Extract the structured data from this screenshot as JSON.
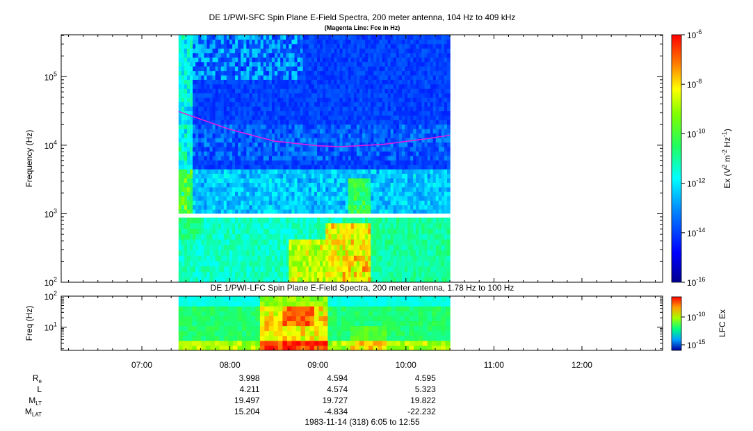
{
  "chart_data": [
    {
      "type": "heatmap",
      "title": "DE 1/PWI-SFC  Spin Plane E-Field Spectra, 200 meter antenna, 104 Hz to 409 kHz",
      "subtitle": "(Magenta Line: Fce in Hz)",
      "ylabel": "Frequency (Hz)",
      "yscale": "log",
      "ylim": [
        100,
        409000
      ],
      "ytick_labels": [
        "10^2",
        "10^3",
        "10^4",
        "10^5"
      ],
      "data_time_range": [
        "07:25",
        "10:30"
      ],
      "colorbar": {
        "label": "Ex (V^2 m^-2 Hz^-1)",
        "scale": "log",
        "range": [
          1e-16,
          1e-06
        ],
        "tick_labels": [
          "10^-6",
          "10^-8",
          "10^-10",
          "10^-12",
          "10^-14",
          "10^-16"
        ]
      },
      "fce_line": {
        "color": "#e020e0",
        "points": [
          {
            "t": "07:25",
            "f": 31000
          },
          {
            "t": "08:00",
            "f": 17000
          },
          {
            "t": "08:30",
            "f": 11500
          },
          {
            "t": "09:00",
            "f": 9800
          },
          {
            "t": "09:15",
            "f": 9500
          },
          {
            "t": "09:45",
            "f": 10300
          },
          {
            "t": "10:15",
            "f": 12500
          },
          {
            "t": "10:30",
            "f": 14000
          }
        ]
      }
    },
    {
      "type": "heatmap",
      "title": "DE 1/PWI-LFC  Spin Plane E-Field Spectra, 200 meter antenna, 1.78 Hz to 100 Hz",
      "ylabel": "Freq (Hz)",
      "yscale": "log",
      "ylim": [
        1.78,
        100
      ],
      "ytick_labels": [
        "10^1",
        "10^2"
      ],
      "data_time_range": [
        "07:25",
        "10:30"
      ],
      "colorbar": {
        "label": "LFC Ex",
        "scale": "log",
        "tick_labels": [
          "10^-10",
          "10^-15"
        ]
      }
    }
  ],
  "time_axis": {
    "range": [
      "06:05",
      "12:55"
    ],
    "tick_labels": [
      "07:00",
      "08:00",
      "09:00",
      "10:00",
      "11:00",
      "12:00"
    ],
    "footer": "1983-11-14 (318) 6:05 to 12:55"
  },
  "ephemeris": {
    "labels": [
      {
        "main": "R",
        "sub": "e"
      },
      {
        "main": "L",
        "sub": ""
      },
      {
        "main": "M",
        "sub": "LT"
      },
      {
        "main": "M",
        "sub": "LAT"
      }
    ],
    "columns": [
      {
        "time": "08:00",
        "values": [
          "3.998",
          "4.211",
          "19.497",
          "15.204"
        ]
      },
      {
        "time": "09:00",
        "values": [
          "4.594",
          "4.574",
          "19.727",
          "-4.834"
        ]
      },
      {
        "time": "10:00",
        "values": [
          "4.595",
          "5.323",
          "19.822",
          "-22.232"
        ]
      }
    ]
  }
}
